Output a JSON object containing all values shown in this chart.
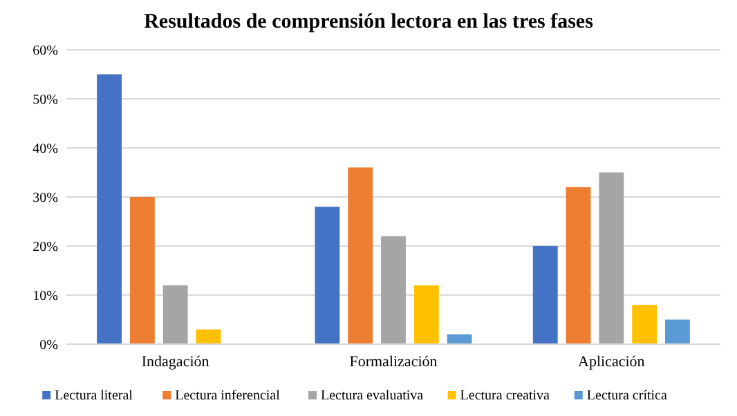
{
  "chart_data": {
    "type": "bar",
    "title": "Resultados de comprensión lectora en las tres fases",
    "categories": [
      "Indagación",
      "Formalización",
      "Aplicación"
    ],
    "series": [
      {
        "name": "Lectura literal",
        "color": "#4472c4",
        "values": [
          55,
          28,
          20
        ]
      },
      {
        "name": "Lectura inferencial",
        "color": "#ed7d31",
        "values": [
          30,
          36,
          32
        ]
      },
      {
        "name": "Lectura evaluativa",
        "color": "#a5a5a5",
        "values": [
          12,
          22,
          35
        ]
      },
      {
        "name": "Lectura creativa",
        "color": "#ffc000",
        "values": [
          3,
          12,
          8
        ]
      },
      {
        "name": "Lectura crítica",
        "color": "#5b9bd5",
        "values": [
          0,
          2,
          5
        ]
      }
    ],
    "ylim": [
      0,
      60
    ],
    "yticks": [
      {
        "value": 0,
        "label": "0%"
      },
      {
        "value": 10,
        "label": "10%"
      },
      {
        "value": 20,
        "label": "20%"
      },
      {
        "value": 30,
        "label": "30%"
      },
      {
        "value": 40,
        "label": "40%"
      },
      {
        "value": 50,
        "label": "50%"
      },
      {
        "value": 60,
        "label": "60%"
      }
    ],
    "grid": "y",
    "legend": "bottom"
  }
}
